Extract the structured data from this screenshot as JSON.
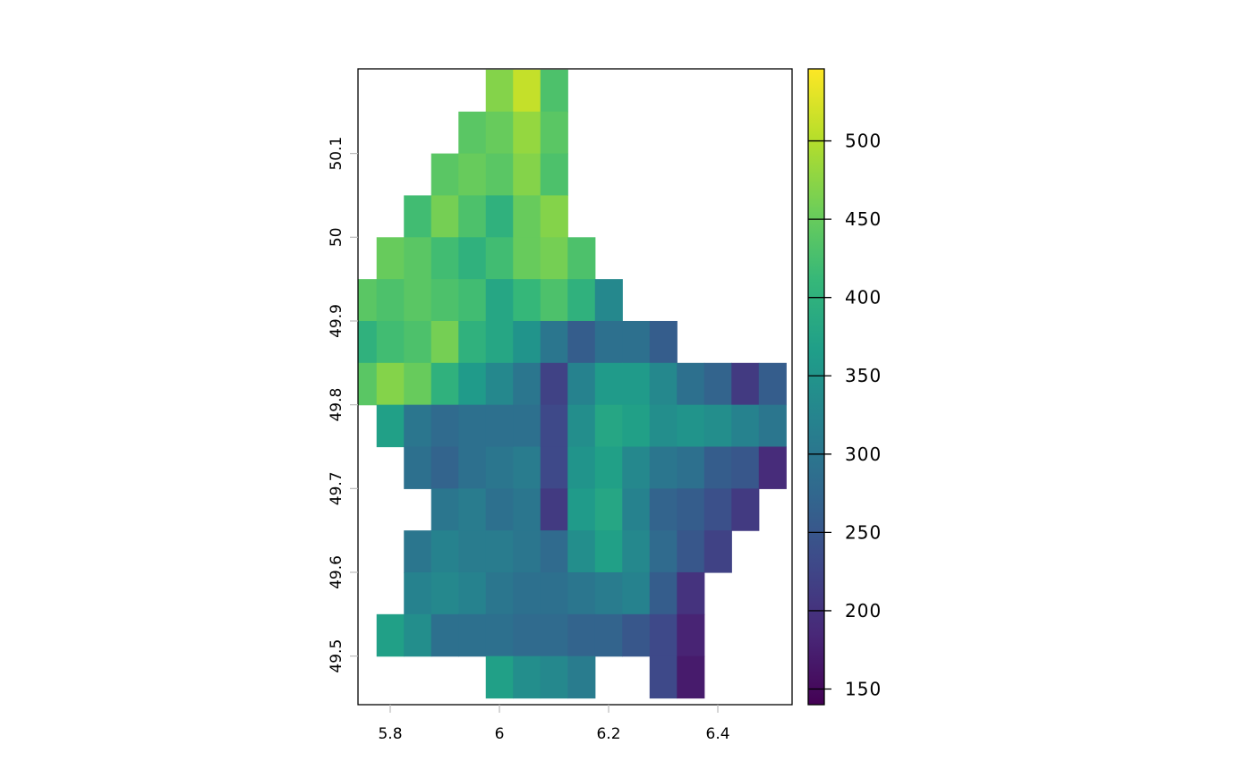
{
  "chart_data": {
    "type": "heatmap",
    "title": "",
    "xlabel": "",
    "ylabel": "",
    "xlim": [
      5.741,
      6.536
    ],
    "ylim": [
      49.442,
      50.201
    ],
    "x_ticks": [
      5.8,
      6,
      6.2,
      6.4
    ],
    "x_tick_labels": [
      "5.8",
      "6",
      "6.2",
      "6.4"
    ],
    "y_ticks": [
      49.5,
      49.6,
      49.7,
      49.8,
      49.9,
      50,
      50.1
    ],
    "y_tick_labels": [
      "49.5",
      "49.6",
      "49.7",
      "49.8",
      "49.9",
      "50",
      "50.1"
    ],
    "colormap": "viridis",
    "value_range": [
      140,
      546
    ],
    "legend": {
      "placement": "right",
      "ticks": [
        150,
        200,
        250,
        300,
        350,
        400,
        450,
        500
      ],
      "tick_labels": [
        "150",
        "200",
        "250",
        "300",
        "350",
        "400",
        "450",
        "500"
      ]
    },
    "grid": false,
    "cell_size_deg": 0.05,
    "lon_start": 5.725,
    "lat_top": 50.2,
    "values": [
      [
        null,
        null,
        null,
        null,
        null,
        470,
        510,
        430,
        null,
        null,
        null,
        null,
        null,
        null,
        null,
        null
      ],
      [
        null,
        null,
        null,
        null,
        440,
        450,
        480,
        440,
        null,
        null,
        null,
        null,
        null,
        null,
        null,
        null
      ],
      [
        null,
        null,
        null,
        440,
        450,
        440,
        470,
        430,
        null,
        null,
        null,
        null,
        null,
        null,
        null,
        null
      ],
      [
        null,
        null,
        420,
        460,
        430,
        400,
        450,
        470,
        null,
        null,
        null,
        null,
        null,
        null,
        null,
        null
      ],
      [
        null,
        450,
        440,
        420,
        400,
        420,
        450,
        460,
        430,
        null,
        null,
        null,
        null,
        null,
        null,
        null
      ],
      [
        440,
        430,
        440,
        430,
        420,
        380,
        410,
        430,
        400,
        330,
        null,
        null,
        null,
        null,
        null,
        null
      ],
      [
        400,
        420,
        430,
        460,
        400,
        380,
        350,
        300,
        260,
        290,
        290,
        260,
        null,
        null,
        null,
        null
      ],
      [
        440,
        470,
        450,
        400,
        360,
        330,
        300,
        220,
        320,
        360,
        360,
        330,
        290,
        270,
        210,
        260
      ],
      [
        null,
        370,
        300,
        280,
        290,
        290,
        290,
        230,
        340,
        380,
        370,
        340,
        350,
        340,
        320,
        300
      ],
      [
        null,
        null,
        290,
        270,
        290,
        300,
        310,
        230,
        350,
        370,
        330,
        300,
        290,
        260,
        250,
        190
      ],
      [
        null,
        null,
        null,
        300,
        310,
        290,
        300,
        210,
        360,
        380,
        320,
        270,
        260,
        240,
        210,
        null
      ],
      [
        null,
        null,
        300,
        320,
        310,
        310,
        300,
        280,
        340,
        370,
        330,
        280,
        250,
        220,
        null,
        null
      ],
      [
        null,
        null,
        320,
        330,
        320,
        300,
        290,
        290,
        300,
        310,
        320,
        260,
        200,
        null,
        null,
        null
      ],
      [
        null,
        370,
        340,
        290,
        290,
        290,
        280,
        280,
        270,
        270,
        250,
        230,
        180,
        null,
        null,
        null
      ],
      [
        null,
        null,
        null,
        null,
        null,
        370,
        340,
        330,
        310,
        null,
        null,
        230,
        170,
        null,
        null,
        null
      ]
    ]
  }
}
